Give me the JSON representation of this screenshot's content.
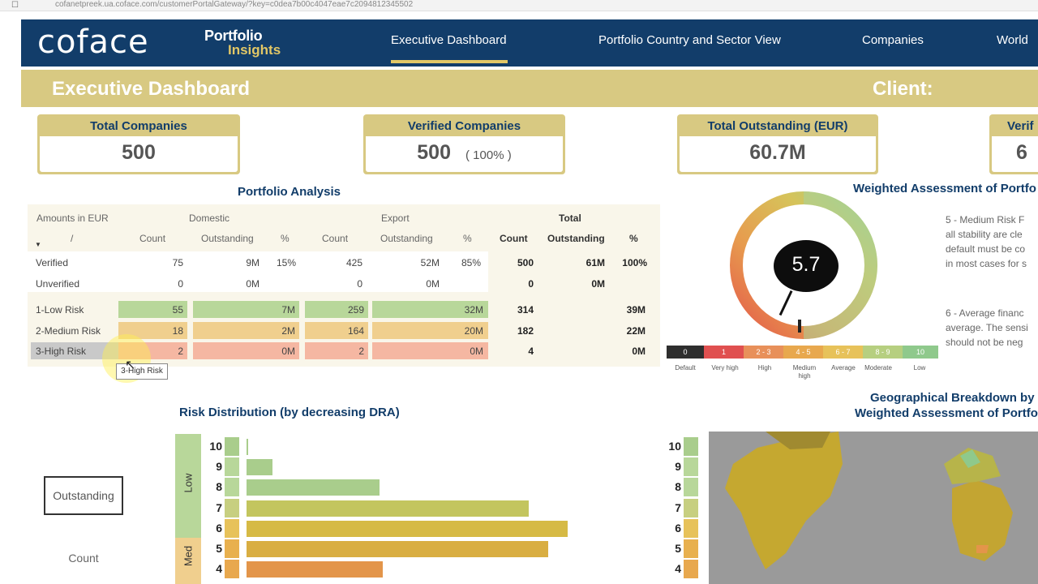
{
  "browser": {
    "url": "cofanetpreek.ua.coface.com/customerPortalGateway/?key=c0dea7b00c4047eae7c2094812345502"
  },
  "header": {
    "logo": "coface",
    "brand_line1": "Portfolio",
    "brand_line2": "Insights",
    "nav": [
      {
        "label": "Executive Dashboard",
        "active": true
      },
      {
        "label": "Portfolio Country and Sector View",
        "active": false
      },
      {
        "label": "Companies",
        "active": false
      },
      {
        "label": "World",
        "active": false
      }
    ]
  },
  "title_band": {
    "title": "Executive Dashboard",
    "client_label": "Client:"
  },
  "kpis": [
    {
      "label": "Total Companies",
      "value": "500",
      "pct": ""
    },
    {
      "label": "Verified Companies",
      "value": "500",
      "pct": "( 100% )"
    },
    {
      "label": "Total Outstanding (EUR)",
      "value": "60.7M",
      "pct": ""
    },
    {
      "label": "Verif",
      "value": "6",
      "pct": ""
    }
  ],
  "portfolio": {
    "title": "Portfolio Analysis",
    "amounts_label": "Amounts in EUR",
    "slash": "/",
    "group_domestic": "Domestic",
    "group_export": "Export",
    "group_total": "Total",
    "col_count": "Count",
    "col_outstanding": "Outstanding",
    "col_pct": "%",
    "rows": [
      {
        "label": "Verified",
        "d_count": "75",
        "d_out": "9M",
        "d_pct": "15%",
        "e_count": "425",
        "e_out": "52M",
        "e_pct": "85%",
        "t_count": "500",
        "t_out": "61M",
        "t_pct": "100%"
      },
      {
        "label": "Unverified",
        "d_count": "0",
        "d_out": "0M",
        "d_pct": "",
        "e_count": "0",
        "e_out": "0M",
        "e_pct": "",
        "t_count": "0",
        "t_out": "0M",
        "t_pct": ""
      },
      {
        "label": "1-Low Risk",
        "d_count": "55",
        "d_out": "7M",
        "d_pct": "",
        "e_count": "259",
        "e_out": "32M",
        "e_pct": "",
        "t_count": "314",
        "t_out": "39M",
        "t_pct": ""
      },
      {
        "label": "2-Medium Risk",
        "d_count": "18",
        "d_out": "2M",
        "d_pct": "",
        "e_count": "164",
        "e_out": "20M",
        "e_pct": "",
        "t_count": "182",
        "t_out": "22M",
        "t_pct": ""
      },
      {
        "label": "3-High Risk",
        "d_count": "2",
        "d_out": "0M",
        "d_pct": "",
        "e_count": "2",
        "e_out": "0M",
        "e_pct": "",
        "t_count": "4",
        "t_out": "0M",
        "t_pct": ""
      }
    ],
    "tooltip": "3-High Risk"
  },
  "assessment": {
    "title": "Weighted Assessment of Portfo",
    "gauge_value": "5.7",
    "gauge_fraction": 0.57,
    "scale": [
      {
        "label": "0",
        "color": "#2e2e2e"
      },
      {
        "label": "1",
        "color": "#e05050"
      },
      {
        "label": "2 - 3",
        "color": "#e8905a"
      },
      {
        "label": "4 - 5",
        "color": "#e8a84e"
      },
      {
        "label": "6 - 7",
        "color": "#e7c25a"
      },
      {
        "label": "8 - 9",
        "color": "#b6cf80"
      },
      {
        "label": "10",
        "color": "#8fc98c"
      }
    ],
    "scale_labels": [
      "Default",
      "Very high",
      "High",
      "Medium high",
      "Average",
      "Moderate",
      "Low"
    ],
    "desc1": [
      "5 - Medium Risk F",
      "all stability are cle",
      "default must be co",
      "in most cases for s"
    ],
    "desc2": [
      "6 - Average financ",
      "average. The sensi",
      "should not be neg"
    ]
  },
  "risk_distribution": {
    "title": "Risk Distribution (by decreasing DRA)",
    "toggle_outstanding": "Outstanding",
    "toggle_count": "Count",
    "band_low": "Low",
    "band_med": "Med"
  },
  "chart_data": {
    "type": "bar",
    "orientation": "horizontal",
    "title": "Risk Distribution (by decreasing DRA)",
    "categories": [
      "10",
      "9",
      "8",
      "7",
      "6",
      "5",
      "4"
    ],
    "values": [
      0.3,
      8,
      41,
      87,
      99,
      93,
      42
    ],
    "colors": [
      "#a9cd8c",
      "#a9cd8c",
      "#a9cd8c",
      "#c3c55e",
      "#d6ba45",
      "#d9ae42",
      "#e3954a"
    ],
    "xlabel": "",
    "ylabel": ""
  },
  "geo": {
    "title_line1": "Geographical Breakdown by",
    "title_line2": "Weighted Assessment of Portfo",
    "legend": [
      "10",
      "9",
      "8",
      "7",
      "6",
      "5",
      "4"
    ]
  }
}
